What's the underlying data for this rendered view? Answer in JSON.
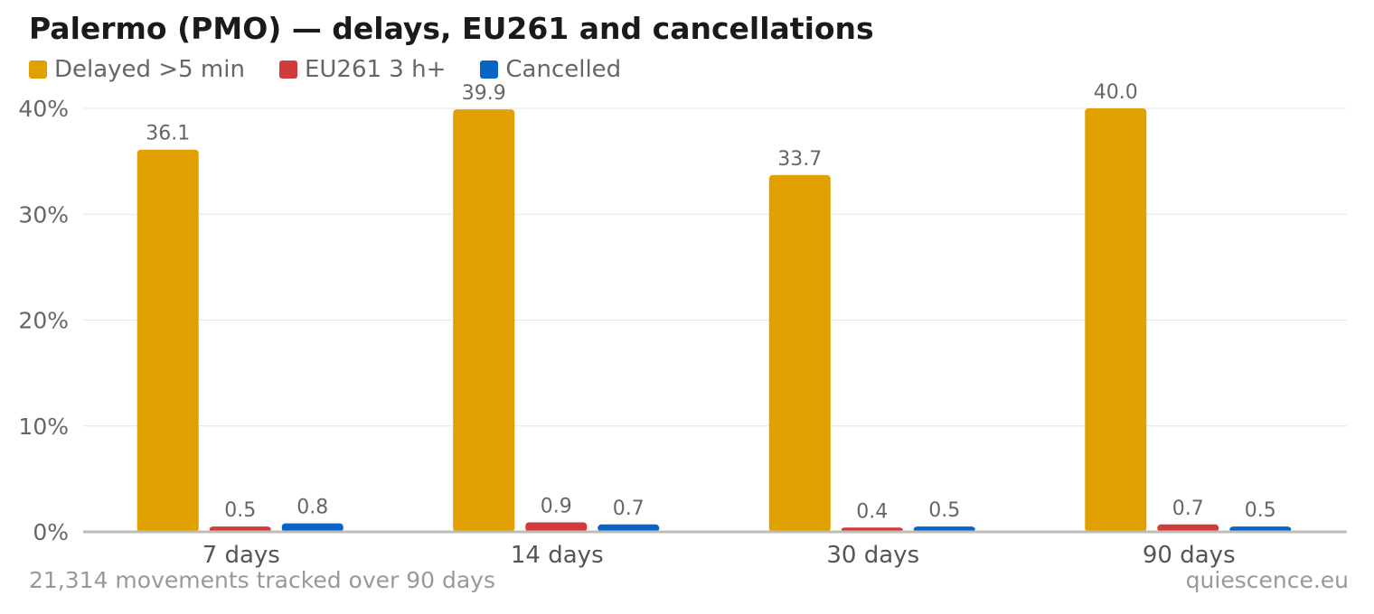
{
  "title": "Palermo (PMO) — delays, EU261 and cancellations",
  "footer": {
    "note": "21,314 movements tracked over 90 days",
    "source": "quiescence.eu"
  },
  "chart_data": {
    "type": "bar",
    "title": "Palermo (PMO) — delays, EU261 and cancellations",
    "categories": [
      "7 days",
      "14 days",
      "30 days",
      "90 days"
    ],
    "series": [
      {
        "name": "Delayed >5 min",
        "color": "#e0a000",
        "values": [
          36.1,
          39.9,
          33.7,
          40.0
        ],
        "labels": [
          "36.1",
          "39.9",
          "33.7",
          "40.0"
        ]
      },
      {
        "name": "EU261 3 h+",
        "color": "#d13b3b",
        "values": [
          0.5,
          0.9,
          0.4,
          0.7
        ],
        "labels": [
          "0.5",
          "0.9",
          "0.4",
          "0.7"
        ]
      },
      {
        "name": "Cancelled",
        "color": "#0a64c8",
        "values": [
          0.8,
          0.7,
          0.5,
          0.5
        ],
        "labels": [
          "0.8",
          "0.7",
          "0.5",
          "0.5"
        ]
      }
    ],
    "yticks": [
      "0%",
      "10%",
      "20%",
      "30%",
      "40%"
    ],
    "ytick_values": [
      0,
      10,
      20,
      30,
      40
    ],
    "ylim": [
      0,
      40
    ],
    "xlabel": "",
    "ylabel": "",
    "grid": true,
    "legend": "top-left"
  }
}
